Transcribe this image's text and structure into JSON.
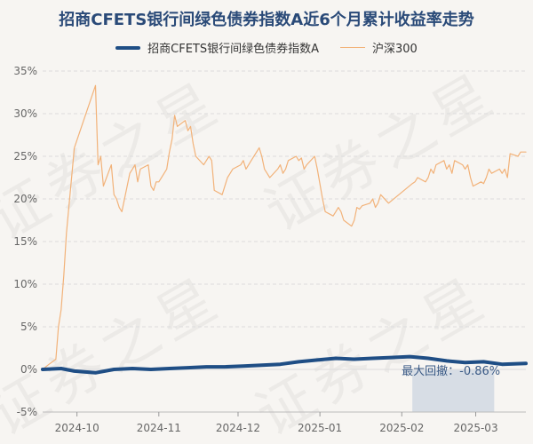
{
  "chart_data": {
    "type": "line",
    "title": "招商CFETS银行间绿色债券指数A近6个月累计收益率走势",
    "xlabel": "",
    "ylabel": "",
    "ylim": [
      -5,
      35
    ],
    "yticks": [
      "35%",
      "30%",
      "25%",
      "20%",
      "15%",
      "10%",
      "5%",
      "0%",
      "-5%"
    ],
    "y_tick_values": [
      35,
      30,
      25,
      20,
      15,
      10,
      5,
      0,
      -5
    ],
    "xlim": [
      "2024-09-18",
      "2025-03-20"
    ],
    "xticks": [
      {
        "label": "2024-10",
        "date": "2024-10-01"
      },
      {
        "label": "2024-11",
        "date": "2024-11-01"
      },
      {
        "label": "2024-12",
        "date": "2024-12-01"
      },
      {
        "label": "2025-01",
        "date": "2025-01-01"
      },
      {
        "label": "2025-02",
        "date": "2025-02-01"
      },
      {
        "label": "2025-03",
        "date": "2025-03-01"
      }
    ],
    "grid": true,
    "legend_position": "top",
    "series": [
      {
        "name": "招商CFETS银行间绿色债券指数A",
        "color": "#1f4e85",
        "points": [
          [
            "2024-09-18",
            0.0
          ],
          [
            "2024-09-25",
            0.1
          ],
          [
            "2024-09-30",
            -0.2
          ],
          [
            "2024-10-08",
            -0.4
          ],
          [
            "2024-10-15",
            0.0
          ],
          [
            "2024-10-22",
            0.1
          ],
          [
            "2024-10-29",
            0.0
          ],
          [
            "2024-11-05",
            0.1
          ],
          [
            "2024-11-12",
            0.2
          ],
          [
            "2024-11-19",
            0.3
          ],
          [
            "2024-11-26",
            0.3
          ],
          [
            "2024-12-03",
            0.4
          ],
          [
            "2024-12-10",
            0.5
          ],
          [
            "2024-12-17",
            0.6
          ],
          [
            "2024-12-24",
            0.9
          ],
          [
            "2024-12-31",
            1.1
          ],
          [
            "2025-01-07",
            1.3
          ],
          [
            "2025-01-14",
            1.2
          ],
          [
            "2025-01-21",
            1.3
          ],
          [
            "2025-01-28",
            1.4
          ],
          [
            "2025-02-04",
            1.5
          ],
          [
            "2025-02-11",
            1.3
          ],
          [
            "2025-02-18",
            1.0
          ],
          [
            "2025-02-25",
            0.8
          ],
          [
            "2025-03-04",
            0.9
          ],
          [
            "2025-03-11",
            0.6
          ],
          [
            "2025-03-20",
            0.7
          ]
        ]
      },
      {
        "name": "沪深300",
        "color": "#f2b279",
        "points": [
          [
            "2024-09-18",
            0.0
          ],
          [
            "2024-09-20",
            0.5
          ],
          [
            "2024-09-23",
            1.2
          ],
          [
            "2024-09-24",
            5.0
          ],
          [
            "2024-09-25",
            7.0
          ],
          [
            "2024-09-26",
            11.0
          ],
          [
            "2024-09-27",
            16.0
          ],
          [
            "2024-09-30",
            26.0
          ],
          [
            "2024-10-08",
            33.3
          ],
          [
            "2024-10-09",
            24.0
          ],
          [
            "2024-10-10",
            25.0
          ],
          [
            "2024-10-11",
            21.5
          ],
          [
            "2024-10-14",
            24.0
          ],
          [
            "2024-10-15",
            20.5
          ],
          [
            "2024-10-16",
            20.0
          ],
          [
            "2024-10-17",
            19.0
          ],
          [
            "2024-10-18",
            18.5
          ],
          [
            "2024-10-21",
            23.0
          ],
          [
            "2024-10-22",
            23.5
          ],
          [
            "2024-10-23",
            24.0
          ],
          [
            "2024-10-24",
            22.0
          ],
          [
            "2024-10-25",
            23.5
          ],
          [
            "2024-10-28",
            24.0
          ],
          [
            "2024-10-29",
            21.5
          ],
          [
            "2024-10-30",
            21.0
          ],
          [
            "2024-10-31",
            22.0
          ],
          [
            "2024-11-01",
            22.0
          ],
          [
            "2024-11-04",
            23.5
          ],
          [
            "2024-11-05",
            25.5
          ],
          [
            "2024-11-06",
            27.0
          ],
          [
            "2024-11-07",
            29.8
          ],
          [
            "2024-11-08",
            28.5
          ],
          [
            "2024-11-11",
            29.2
          ],
          [
            "2024-11-12",
            28.0
          ],
          [
            "2024-11-13",
            28.5
          ],
          [
            "2024-11-14",
            26.5
          ],
          [
            "2024-11-15",
            25.0
          ],
          [
            "2024-11-18",
            24.0
          ],
          [
            "2024-11-19",
            24.5
          ],
          [
            "2024-11-20",
            25.0
          ],
          [
            "2024-11-21",
            24.5
          ],
          [
            "2024-11-22",
            21.0
          ],
          [
            "2024-11-25",
            20.5
          ],
          [
            "2024-11-26",
            21.5
          ],
          [
            "2024-11-27",
            22.5
          ],
          [
            "2024-11-28",
            23.0
          ],
          [
            "2024-11-29",
            23.5
          ],
          [
            "2024-12-02",
            24.0
          ],
          [
            "2024-12-03",
            24.5
          ],
          [
            "2024-12-04",
            23.5
          ],
          [
            "2024-12-05",
            24.0
          ],
          [
            "2024-12-06",
            24.5
          ],
          [
            "2024-12-09",
            26.0
          ],
          [
            "2024-12-10",
            25.0
          ],
          [
            "2024-12-11",
            23.5
          ],
          [
            "2024-12-12",
            23.0
          ],
          [
            "2024-12-13",
            22.5
          ],
          [
            "2024-12-16",
            23.5
          ],
          [
            "2024-12-17",
            24.0
          ],
          [
            "2024-12-18",
            23.0
          ],
          [
            "2024-12-19",
            23.5
          ],
          [
            "2024-12-20",
            24.5
          ],
          [
            "2024-12-23",
            25.0
          ],
          [
            "2024-12-24",
            24.5
          ],
          [
            "2024-12-25",
            24.8
          ],
          [
            "2024-12-26",
            23.5
          ],
          [
            "2024-12-27",
            24.0
          ],
          [
            "2024-12-30",
            25.0
          ],
          [
            "2024-12-31",
            23.5
          ],
          [
            "2025-01-02",
            20.0
          ],
          [
            "2025-01-03",
            18.5
          ],
          [
            "2025-01-06",
            18.0
          ],
          [
            "2025-01-07",
            18.5
          ],
          [
            "2025-01-08",
            19.0
          ],
          [
            "2025-01-09",
            18.5
          ],
          [
            "2025-01-10",
            17.5
          ],
          [
            "2025-01-13",
            16.8
          ],
          [
            "2025-01-14",
            17.5
          ],
          [
            "2025-01-15",
            19.0
          ],
          [
            "2025-01-16",
            18.8
          ],
          [
            "2025-01-17",
            19.2
          ],
          [
            "2025-01-20",
            19.5
          ],
          [
            "2025-01-21",
            20.0
          ],
          [
            "2025-01-22",
            19.0
          ],
          [
            "2025-01-23",
            19.5
          ],
          [
            "2025-01-24",
            20.5
          ],
          [
            "2025-01-27",
            19.5
          ],
          [
            "2025-02-05",
            21.8
          ],
          [
            "2025-02-06",
            22.0
          ],
          [
            "2025-02-07",
            22.5
          ],
          [
            "2025-02-10",
            22.0
          ],
          [
            "2025-02-11",
            22.5
          ],
          [
            "2025-02-12",
            23.5
          ],
          [
            "2025-02-13",
            23.0
          ],
          [
            "2025-02-14",
            24.0
          ],
          [
            "2025-02-17",
            24.5
          ],
          [
            "2025-02-18",
            23.5
          ],
          [
            "2025-02-19",
            24.0
          ],
          [
            "2025-02-20",
            23.0
          ],
          [
            "2025-02-21",
            24.5
          ],
          [
            "2025-02-24",
            24.0
          ],
          [
            "2025-02-25",
            23.5
          ],
          [
            "2025-02-26",
            24.0
          ],
          [
            "2025-02-27",
            22.5
          ],
          [
            "2025-02-28",
            21.5
          ],
          [
            "2025-03-03",
            22.0
          ],
          [
            "2025-03-04",
            21.8
          ],
          [
            "2025-03-05",
            22.5
          ],
          [
            "2025-03-06",
            23.5
          ],
          [
            "2025-03-07",
            23.0
          ],
          [
            "2025-03-10",
            23.5
          ],
          [
            "2025-03-11",
            23.0
          ],
          [
            "2025-03-12",
            23.5
          ],
          [
            "2025-03-13",
            22.5
          ],
          [
            "2025-03-14",
            25.3
          ],
          [
            "2025-03-17",
            25.0
          ],
          [
            "2025-03-18",
            25.5
          ],
          [
            "2025-03-20",
            25.5
          ]
        ]
      }
    ],
    "drawdown": {
      "label": "最大回撤：-0.86%",
      "start": "2025-02-05",
      "end": "2025-03-08",
      "fill": "#c9d3e0"
    }
  },
  "watermark_text": "证券之星"
}
